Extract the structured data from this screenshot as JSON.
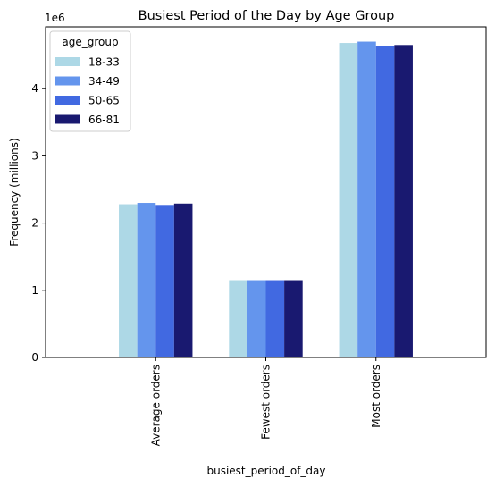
{
  "chart_data": {
    "type": "bar",
    "title": "Busiest Period of the Day by Age Group",
    "xlabel": "busiest_period_of_day",
    "ylabel": "Frequency (millions)",
    "y_offset_label": "1e6",
    "categories": [
      "Average orders",
      "Fewest orders",
      "Most orders"
    ],
    "y_ticks": [
      "0",
      "1",
      "2",
      "3",
      "4"
    ],
    "ylim": [
      0,
      4.92
    ],
    "grid": false,
    "legend": {
      "title": "age_group",
      "placement": "top-left"
    },
    "series": [
      {
        "name": "18-33",
        "color": "#add8e6",
        "values": [
          2.28,
          1.15,
          4.68
        ]
      },
      {
        "name": "34-49",
        "color": "#6495ed",
        "values": [
          2.3,
          1.15,
          4.7
        ]
      },
      {
        "name": "50-65",
        "color": "#4169e1",
        "values": [
          2.27,
          1.15,
          4.63
        ]
      },
      {
        "name": "66-81",
        "color": "#191970",
        "values": [
          2.29,
          1.15,
          4.65
        ]
      }
    ]
  }
}
